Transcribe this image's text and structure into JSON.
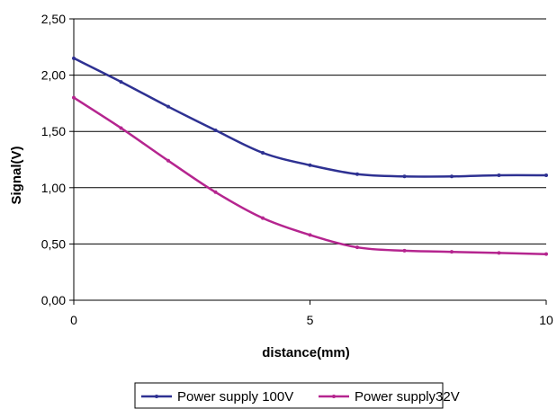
{
  "chart_data": {
    "type": "line",
    "title": "",
    "xlabel": "distance(mm)",
    "ylabel": "Signal(V)",
    "xlim": [
      0,
      10
    ],
    "ylim": [
      0,
      2.5
    ],
    "x_ticks": [
      0,
      5,
      10
    ],
    "x_tick_labels": [
      "0",
      "5",
      "10"
    ],
    "y_ticks": [
      0,
      0.5,
      1.0,
      1.5,
      2.0,
      2.5
    ],
    "y_tick_labels": [
      "0,00",
      "0,50",
      "1,00",
      "1,50",
      "2,00",
      "2,50"
    ],
    "grid": "horizontal",
    "legend_position": "bottom",
    "series": [
      {
        "name": "Power supply 100V",
        "color": "#2e3192",
        "x": [
          0,
          1,
          2,
          3,
          4,
          5,
          6,
          7,
          8,
          9,
          10
        ],
        "y": [
          2.15,
          1.94,
          1.72,
          1.51,
          1.31,
          1.2,
          1.12,
          1.1,
          1.1,
          1.11,
          1.11
        ]
      },
      {
        "name": "Power supply32V",
        "color": "#b5258f",
        "x": [
          0,
          1,
          2,
          3,
          4,
          5,
          6,
          7,
          8,
          9,
          10
        ],
        "y": [
          1.8,
          1.53,
          1.24,
          0.96,
          0.73,
          0.58,
          0.47,
          0.44,
          0.43,
          0.42,
          0.41
        ]
      }
    ]
  }
}
